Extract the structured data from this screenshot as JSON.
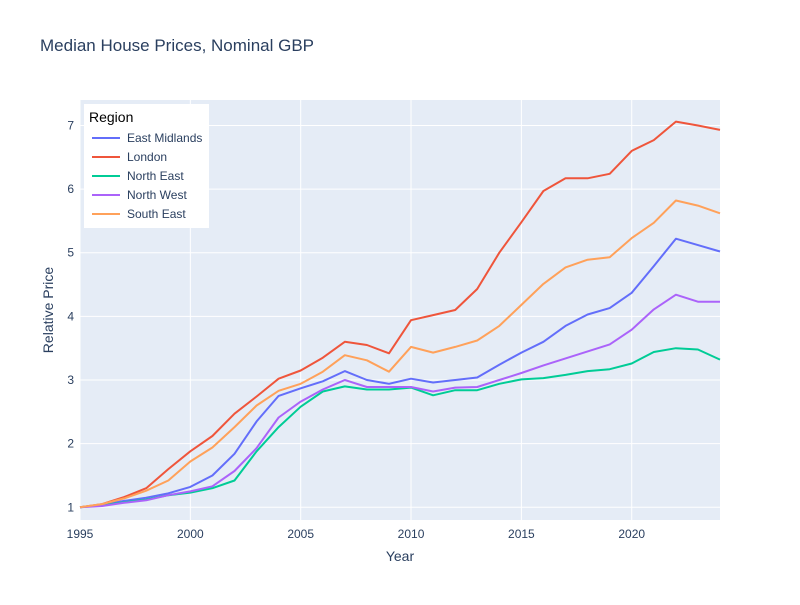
{
  "colors": {
    "plot_bg": "#e5ecf6",
    "grid": "#ffffff",
    "text": "#444444",
    "title": "#2a3f5f"
  },
  "chart_data": {
    "type": "line",
    "title": "Median House Prices, Nominal GBP",
    "xlabel": "Year",
    "ylabel": "Relative Price",
    "xlim": [
      1995,
      2024
    ],
    "ylim": [
      0.8,
      7.4
    ],
    "xticks": [
      1995,
      2000,
      2005,
      2010,
      2015,
      2020
    ],
    "yticks": [
      1,
      2,
      3,
      4,
      5,
      6,
      7
    ],
    "grid": true,
    "legend": {
      "title": "Region",
      "position": "top-left"
    },
    "x": [
      1995,
      1996,
      1997,
      1998,
      1999,
      2000,
      2001,
      2002,
      2003,
      2004,
      2005,
      2006,
      2007,
      2008,
      2009,
      2010,
      2011,
      2012,
      2013,
      2014,
      2015,
      2016,
      2017,
      2018,
      2019,
      2020,
      2021,
      2022,
      2023,
      2024
    ],
    "series": [
      {
        "name": "East Midlands",
        "color": "#636efa",
        "values": [
          1.0,
          1.04,
          1.1,
          1.15,
          1.22,
          1.32,
          1.5,
          1.84,
          2.35,
          2.75,
          2.87,
          2.98,
          3.14,
          3.0,
          2.94,
          3.02,
          2.96,
          3.0,
          3.04,
          3.24,
          3.43,
          3.6,
          3.85,
          4.03,
          4.13,
          4.37,
          4.79,
          5.22,
          5.12,
          5.02
        ]
      },
      {
        "name": "London",
        "color": "#ef553b",
        "values": [
          1.0,
          1.05,
          1.16,
          1.3,
          1.6,
          1.88,
          2.12,
          2.47,
          2.74,
          3.02,
          3.15,
          3.35,
          3.6,
          3.55,
          3.42,
          3.94,
          4.02,
          4.1,
          4.43,
          5.0,
          5.48,
          5.97,
          6.17,
          6.17,
          6.24,
          6.6,
          6.77,
          7.06,
          7.0,
          6.93
        ]
      },
      {
        "name": "North East",
        "color": "#00cc96",
        "values": [
          1.0,
          1.03,
          1.08,
          1.12,
          1.19,
          1.23,
          1.3,
          1.42,
          1.88,
          2.26,
          2.58,
          2.82,
          2.9,
          2.85,
          2.85,
          2.88,
          2.76,
          2.84,
          2.84,
          2.94,
          3.01,
          3.03,
          3.08,
          3.14,
          3.17,
          3.26,
          3.44,
          3.5,
          3.48,
          3.32
        ]
      },
      {
        "name": "North West",
        "color": "#ab63fa",
        "values": [
          1.0,
          1.02,
          1.07,
          1.11,
          1.19,
          1.25,
          1.33,
          1.57,
          1.93,
          2.41,
          2.66,
          2.85,
          3.0,
          2.89,
          2.89,
          2.89,
          2.82,
          2.88,
          2.89,
          3.0,
          3.11,
          3.23,
          3.34,
          3.45,
          3.56,
          3.79,
          4.11,
          4.34,
          4.23,
          4.23
        ]
      },
      {
        "name": "South East",
        "color": "#ffa15a",
        "values": [
          1.0,
          1.05,
          1.14,
          1.26,
          1.42,
          1.72,
          1.94,
          2.26,
          2.6,
          2.83,
          2.94,
          3.13,
          3.39,
          3.31,
          3.13,
          3.52,
          3.43,
          3.52,
          3.62,
          3.85,
          4.18,
          4.51,
          4.77,
          4.89,
          4.93,
          5.23,
          5.47,
          5.82,
          5.74,
          5.62
        ]
      }
    ]
  }
}
